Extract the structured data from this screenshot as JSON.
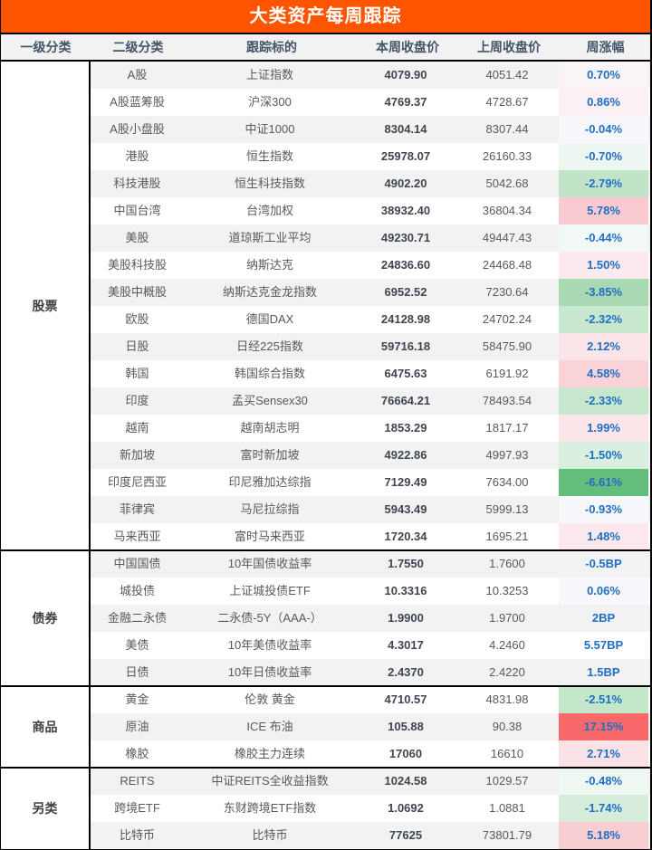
{
  "chart_data": {
    "type": "table",
    "title": "大类资产每周跟踪",
    "columns": [
      "一级分类",
      "二级分类",
      "跟踪标的",
      "本周收盘价",
      "上周收盘价",
      "周涨幅"
    ],
    "sections": [
      {
        "name": "股票",
        "rows": [
          {
            "sub": "A股",
            "target": "上证指数",
            "current": "4079.90",
            "previous": "4051.42",
            "change": "0.70%",
            "change_bg": "#fbf4f7"
          },
          {
            "sub": "A股蓝筹股",
            "target": "沪深300",
            "current": "4769.37",
            "previous": "4728.67",
            "change": "0.86%",
            "change_bg": "#fbf0f3"
          },
          {
            "sub": "A股小盘股",
            "target": "中证1000",
            "current": "8304.14",
            "previous": "8307.44",
            "change": "-0.04%",
            "change_bg": "#f8f8fc"
          },
          {
            "sub": "港股",
            "target": "恒生指数",
            "current": "25978.07",
            "previous": "26160.33",
            "change": "-0.70%",
            "change_bg": "#eef6f1"
          },
          {
            "sub": "科技港股",
            "target": "恒生科技指数",
            "current": "4902.20",
            "previous": "5042.68",
            "change": "-2.79%",
            "change_bg": "#c1e4c9"
          },
          {
            "sub": "中国台湾",
            "target": "台湾加权",
            "current": "38932.40",
            "previous": "36804.34",
            "change": "5.78%",
            "change_bg": "#f9cacf"
          },
          {
            "sub": "美股",
            "target": "道琼斯工业平均",
            "current": "49230.71",
            "previous": "49447.43",
            "change": "-0.44%",
            "change_bg": "#f2f8f5"
          },
          {
            "sub": "美股科技股",
            "target": "纳斯达克",
            "current": "24836.60",
            "previous": "24468.48",
            "change": "1.50%",
            "change_bg": "#fce9ed"
          },
          {
            "sub": "美股中概股",
            "target": "纳斯达克金龙指数",
            "current": "6952.52",
            "previous": "7230.64",
            "change": "-3.85%",
            "change_bg": "#a8d9b2"
          },
          {
            "sub": "欧股",
            "target": "德国DAX",
            "current": "24128.98",
            "previous": "24702.24",
            "change": "-2.32%",
            "change_bg": "#c8e7cf"
          },
          {
            "sub": "日股",
            "target": "日经225指数",
            "current": "59716.18",
            "previous": "58475.90",
            "change": "2.12%",
            "change_bg": "#fce5e9"
          },
          {
            "sub": "韩国",
            "target": "韩国综合指数",
            "current": "6475.63",
            "previous": "6191.92",
            "change": "4.58%",
            "change_bg": "#fad3d8"
          },
          {
            "sub": "印度",
            "target": "孟买Sensex30",
            "current": "76664.21",
            "previous": "78493.54",
            "change": "-2.33%",
            "change_bg": "#c8e7cf"
          },
          {
            "sub": "越南",
            "target": "越南胡志明",
            "current": "1853.29",
            "previous": "1817.17",
            "change": "1.99%",
            "change_bg": "#fce6ea"
          },
          {
            "sub": "新加坡",
            "target": "富时新加坡",
            "current": "4922.86",
            "previous": "4997.93",
            "change": "-1.50%",
            "change_bg": "#daefdf"
          },
          {
            "sub": "印度尼西亚",
            "target": "印尼雅加达综指",
            "current": "7129.49",
            "previous": "7634.00",
            "change": "-6.61%",
            "change_bg": "#63be7b"
          },
          {
            "sub": "菲律宾",
            "target": "马尼拉综指",
            "current": "5943.49",
            "previous": "5999.13",
            "change": "-0.93%",
            "change_bg": "#f6f8fb"
          },
          {
            "sub": "马来西亚",
            "target": "富时马来西亚",
            "current": "1720.34",
            "previous": "1695.21",
            "change": "1.48%",
            "change_bg": "#fce9ed"
          }
        ]
      },
      {
        "name": "债券",
        "rows": [
          {
            "sub": "中国国债",
            "target": "10年国债收益率",
            "current": "1.7550",
            "previous": "1.7600",
            "change": "-0.5BP",
            "change_bg": null
          },
          {
            "sub": "城投债",
            "target": "上证城投债ETF",
            "current": "10.3316",
            "previous": "10.3253",
            "change": "0.06%",
            "change_bg": "#f8f8fc"
          },
          {
            "sub": "金融二永债",
            "target": "二永债-5Y（AAA-）",
            "current": "1.9900",
            "previous": "1.9700",
            "change": "2BP",
            "change_bg": null
          },
          {
            "sub": "美债",
            "target": "10年美债收益率",
            "current": "4.3017",
            "previous": "4.2460",
            "change": "5.57BP",
            "change_bg": null
          },
          {
            "sub": "日债",
            "target": "10年日债收益率",
            "current": "2.4370",
            "previous": "2.4220",
            "change": "1.5BP",
            "change_bg": null
          }
        ]
      },
      {
        "name": "商品",
        "rows": [
          {
            "sub": "黄金",
            "target": "伦敦 黄金",
            "current": "4710.57",
            "previous": "4831.98",
            "change": "-2.51%",
            "change_bg": "#c4e6cb"
          },
          {
            "sub": "原油",
            "target": "ICE 布油",
            "current": "105.88",
            "previous": "90.38",
            "change": "17.15%",
            "change_bg": "#f8696b"
          },
          {
            "sub": "橡胶",
            "target": "橡胶主力连续",
            "current": "17060",
            "previous": "16610",
            "change": "2.71%",
            "change_bg": "#fbe2e6"
          }
        ]
      },
      {
        "name": "另类",
        "rows": [
          {
            "sub": "REITS",
            "target": "中证REITS全收益指数",
            "current": "1024.58",
            "previous": "1029.57",
            "change": "-0.48%",
            "change_bg": "#eff7f3"
          },
          {
            "sub": "跨境ETF",
            "target": "东财跨境ETF指数",
            "current": "1.0692",
            "previous": "1.0881",
            "change": "-1.74%",
            "change_bg": "#d4ecd9"
          },
          {
            "sub": "比特币",
            "target": "比特币",
            "current": "77625",
            "previous": "73801.79",
            "change": "5.18%",
            "change_bg": "#f9ced3"
          }
        ]
      }
    ]
  },
  "colors": {
    "title_bg": "#ff5500",
    "header_bg": "#f2f2f2",
    "header_text": "#44546a",
    "stripe_gray": "#f2f2f2",
    "change_text": "#1f6fc4",
    "max_up": "#f8696b",
    "max_down": "#63be7b"
  }
}
